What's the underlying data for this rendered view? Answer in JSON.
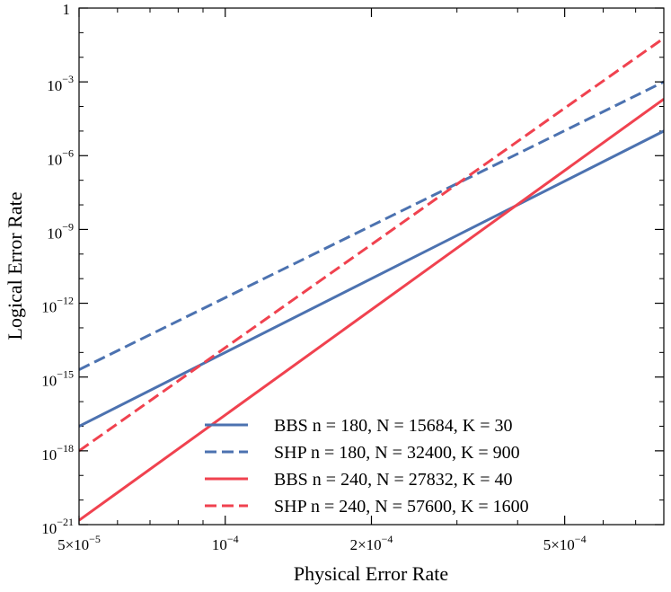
{
  "chart_data": {
    "type": "line",
    "xlabel": "Physical Error Rate",
    "ylabel": "Logical Error Rate",
    "xscale": "log",
    "yscale": "log",
    "xlim": [
      5e-05,
      0.0008
    ],
    "ylim": [
      1e-21,
      1
    ],
    "x_ticks": [
      {
        "value": 5e-05,
        "mant": "5",
        "exp": "-5"
      },
      {
        "value": 0.0001,
        "mant": "",
        "exp": "-4"
      },
      {
        "value": 0.0002,
        "mant": "2",
        "exp": "-4"
      },
      {
        "value": 0.0005,
        "mant": "5",
        "exp": "-4"
      }
    ],
    "y_ticks": [
      {
        "value": 1,
        "base": "1",
        "exp": ""
      },
      {
        "value": 0.001,
        "base": "10",
        "exp": "-3"
      },
      {
        "value": 1e-06,
        "base": "10",
        "exp": "-6"
      },
      {
        "value": 1e-09,
        "base": "10",
        "exp": "-9"
      },
      {
        "value": 1e-12,
        "base": "10",
        "exp": "-12"
      },
      {
        "value": 1e-15,
        "base": "10",
        "exp": "-15"
      },
      {
        "value": 1e-18,
        "base": "10",
        "exp": "-18"
      },
      {
        "value": 1e-21,
        "base": "10",
        "exp": "-21"
      }
    ],
    "legend_position": "lower-right",
    "grid": false,
    "series": [
      {
        "name": "BBS n = 180, N = 15684, K = 30",
        "color": "#4c72b0",
        "dash": "solid",
        "points": [
          [
            5e-05,
            1e-17
          ],
          [
            0.0008,
            1e-05
          ]
        ]
      },
      {
        "name": "SHP n = 180, N = 32400, K = 900",
        "color": "#4c72b0",
        "dash": "dashed",
        "points": [
          [
            5e-05,
            2e-15
          ],
          [
            0.0008,
            0.001
          ]
        ]
      },
      {
        "name": "BBS n = 240, N = 27832, K = 40",
        "color": "#f0424f",
        "dash": "solid",
        "points": [
          [
            5e-05,
            1.5e-21
          ],
          [
            0.0008,
            0.0002
          ]
        ]
      },
      {
        "name": "SHP n = 240, N = 57600, K = 1600",
        "color": "#f0424f",
        "dash": "dashed",
        "points": [
          [
            5e-05,
            1e-18
          ],
          [
            0.0008,
            0.06
          ]
        ]
      }
    ]
  }
}
